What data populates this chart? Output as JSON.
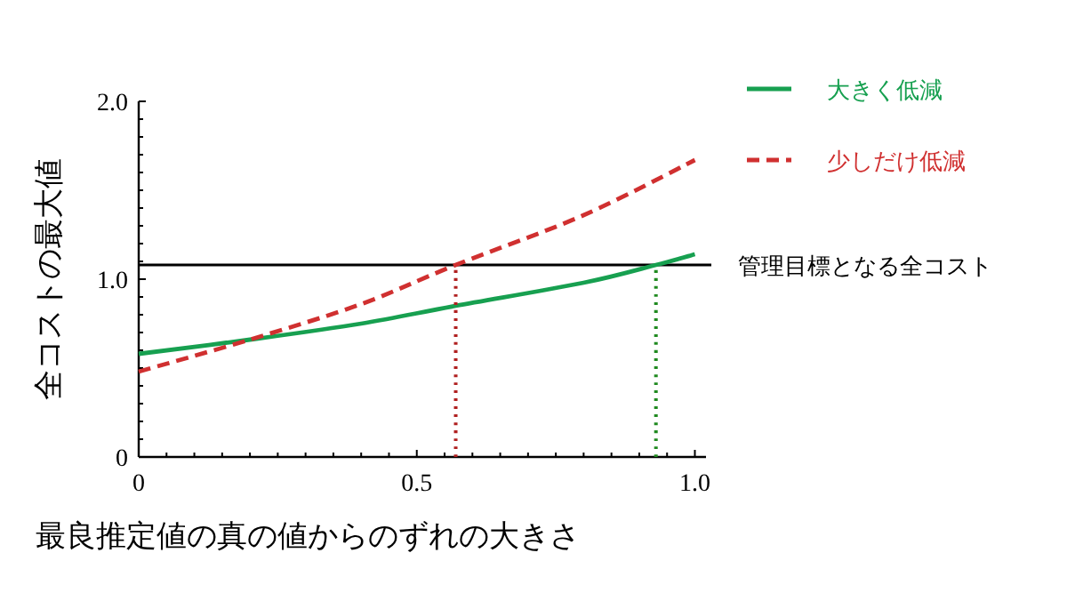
{
  "chart_data": {
    "type": "line",
    "xlabel": "最良推定値の真の値からのずれの大きさ",
    "ylabel": "全コストの最大値",
    "xlim": [
      0,
      1.02
    ],
    "ylim": [
      0,
      2.0
    ],
    "xticks": [
      0,
      {
        "value": 0.05,
        "label": null
      },
      {
        "value": 0.1,
        "label": null
      },
      {
        "value": 0.15,
        "label": null
      },
      {
        "value": 0.2,
        "label": null
      },
      {
        "value": 0.25,
        "label": null
      },
      {
        "value": 0.3,
        "label": null
      },
      {
        "value": 0.35,
        "label": null
      },
      {
        "value": 0.4,
        "label": null
      },
      {
        "value": 0.45,
        "label": null
      },
      0.5,
      {
        "value": 0.55,
        "label": null
      },
      {
        "value": 0.6,
        "label": null
      },
      {
        "value": 0.65,
        "label": null
      },
      {
        "value": 0.7,
        "label": null
      },
      {
        "value": 0.75,
        "label": null
      },
      {
        "value": 0.8,
        "label": null
      },
      {
        "value": 0.85,
        "label": null
      },
      {
        "value": 0.9,
        "label": null
      },
      {
        "value": 0.95,
        "label": null
      },
      {
        "value": 1,
        "label": "1.0"
      }
    ],
    "yticks": [
      0,
      {
        "value": 0.1,
        "label": null
      },
      {
        "value": 0.2,
        "label": null
      },
      {
        "value": 0.3,
        "label": null
      },
      {
        "value": 0.4,
        "label": null
      },
      {
        "value": 0.5,
        "label": null
      },
      {
        "value": 0.6,
        "label": null
      },
      {
        "value": 0.7,
        "label": null
      },
      {
        "value": 0.8,
        "label": null
      },
      {
        "value": 0.9,
        "label": null
      },
      {
        "value": 1,
        "label": "1.0"
      },
      {
        "value": 1.1,
        "label": null
      },
      {
        "value": 1.2,
        "label": null
      },
      {
        "value": 1.3,
        "label": null
      },
      {
        "value": 1.4,
        "label": null
      },
      {
        "value": 1.5,
        "label": null
      },
      {
        "value": 1.6,
        "label": null
      },
      {
        "value": 1.7,
        "label": null
      },
      {
        "value": 1.8,
        "label": null
      },
      {
        "value": 1.9,
        "label": null
      },
      {
        "value": 2,
        "label": "2.0"
      }
    ],
    "series": [
      {
        "name": "大きく低減",
        "color": "#17a050",
        "line_style": "solid",
        "x": [
          0,
          0.2,
          0.4,
          0.57,
          0.8,
          0.93,
          1.0
        ],
        "values": [
          0.58,
          0.66,
          0.75,
          0.85,
          0.98,
          1.08,
          1.14
        ]
      },
      {
        "name": "少しだけ低減",
        "color": "#d03030",
        "line_style": "dashed",
        "x": [
          0,
          0.2,
          0.4,
          0.57,
          0.8,
          1.0
        ],
        "values": [
          0.48,
          0.66,
          0.86,
          1.08,
          1.36,
          1.67
        ]
      },
      {
        "color": "#b02020",
        "line_style": "dotted",
        "x": [
          0.57,
          0.57
        ],
        "values": [
          0,
          1.08
        ]
      },
      {
        "color": "#208a20",
        "line_style": "dotted",
        "x": [
          0.93,
          0.93
        ],
        "values": [
          0,
          1.08
        ]
      }
    ],
    "ref_lines": [
      {
        "axis": "y",
        "value": 1.08,
        "label": "管理目標となる全コスト",
        "color": "#000000",
        "line_style": "solid"
      }
    ],
    "legend": "top right",
    "grid": false,
    "marker": "none"
  }
}
